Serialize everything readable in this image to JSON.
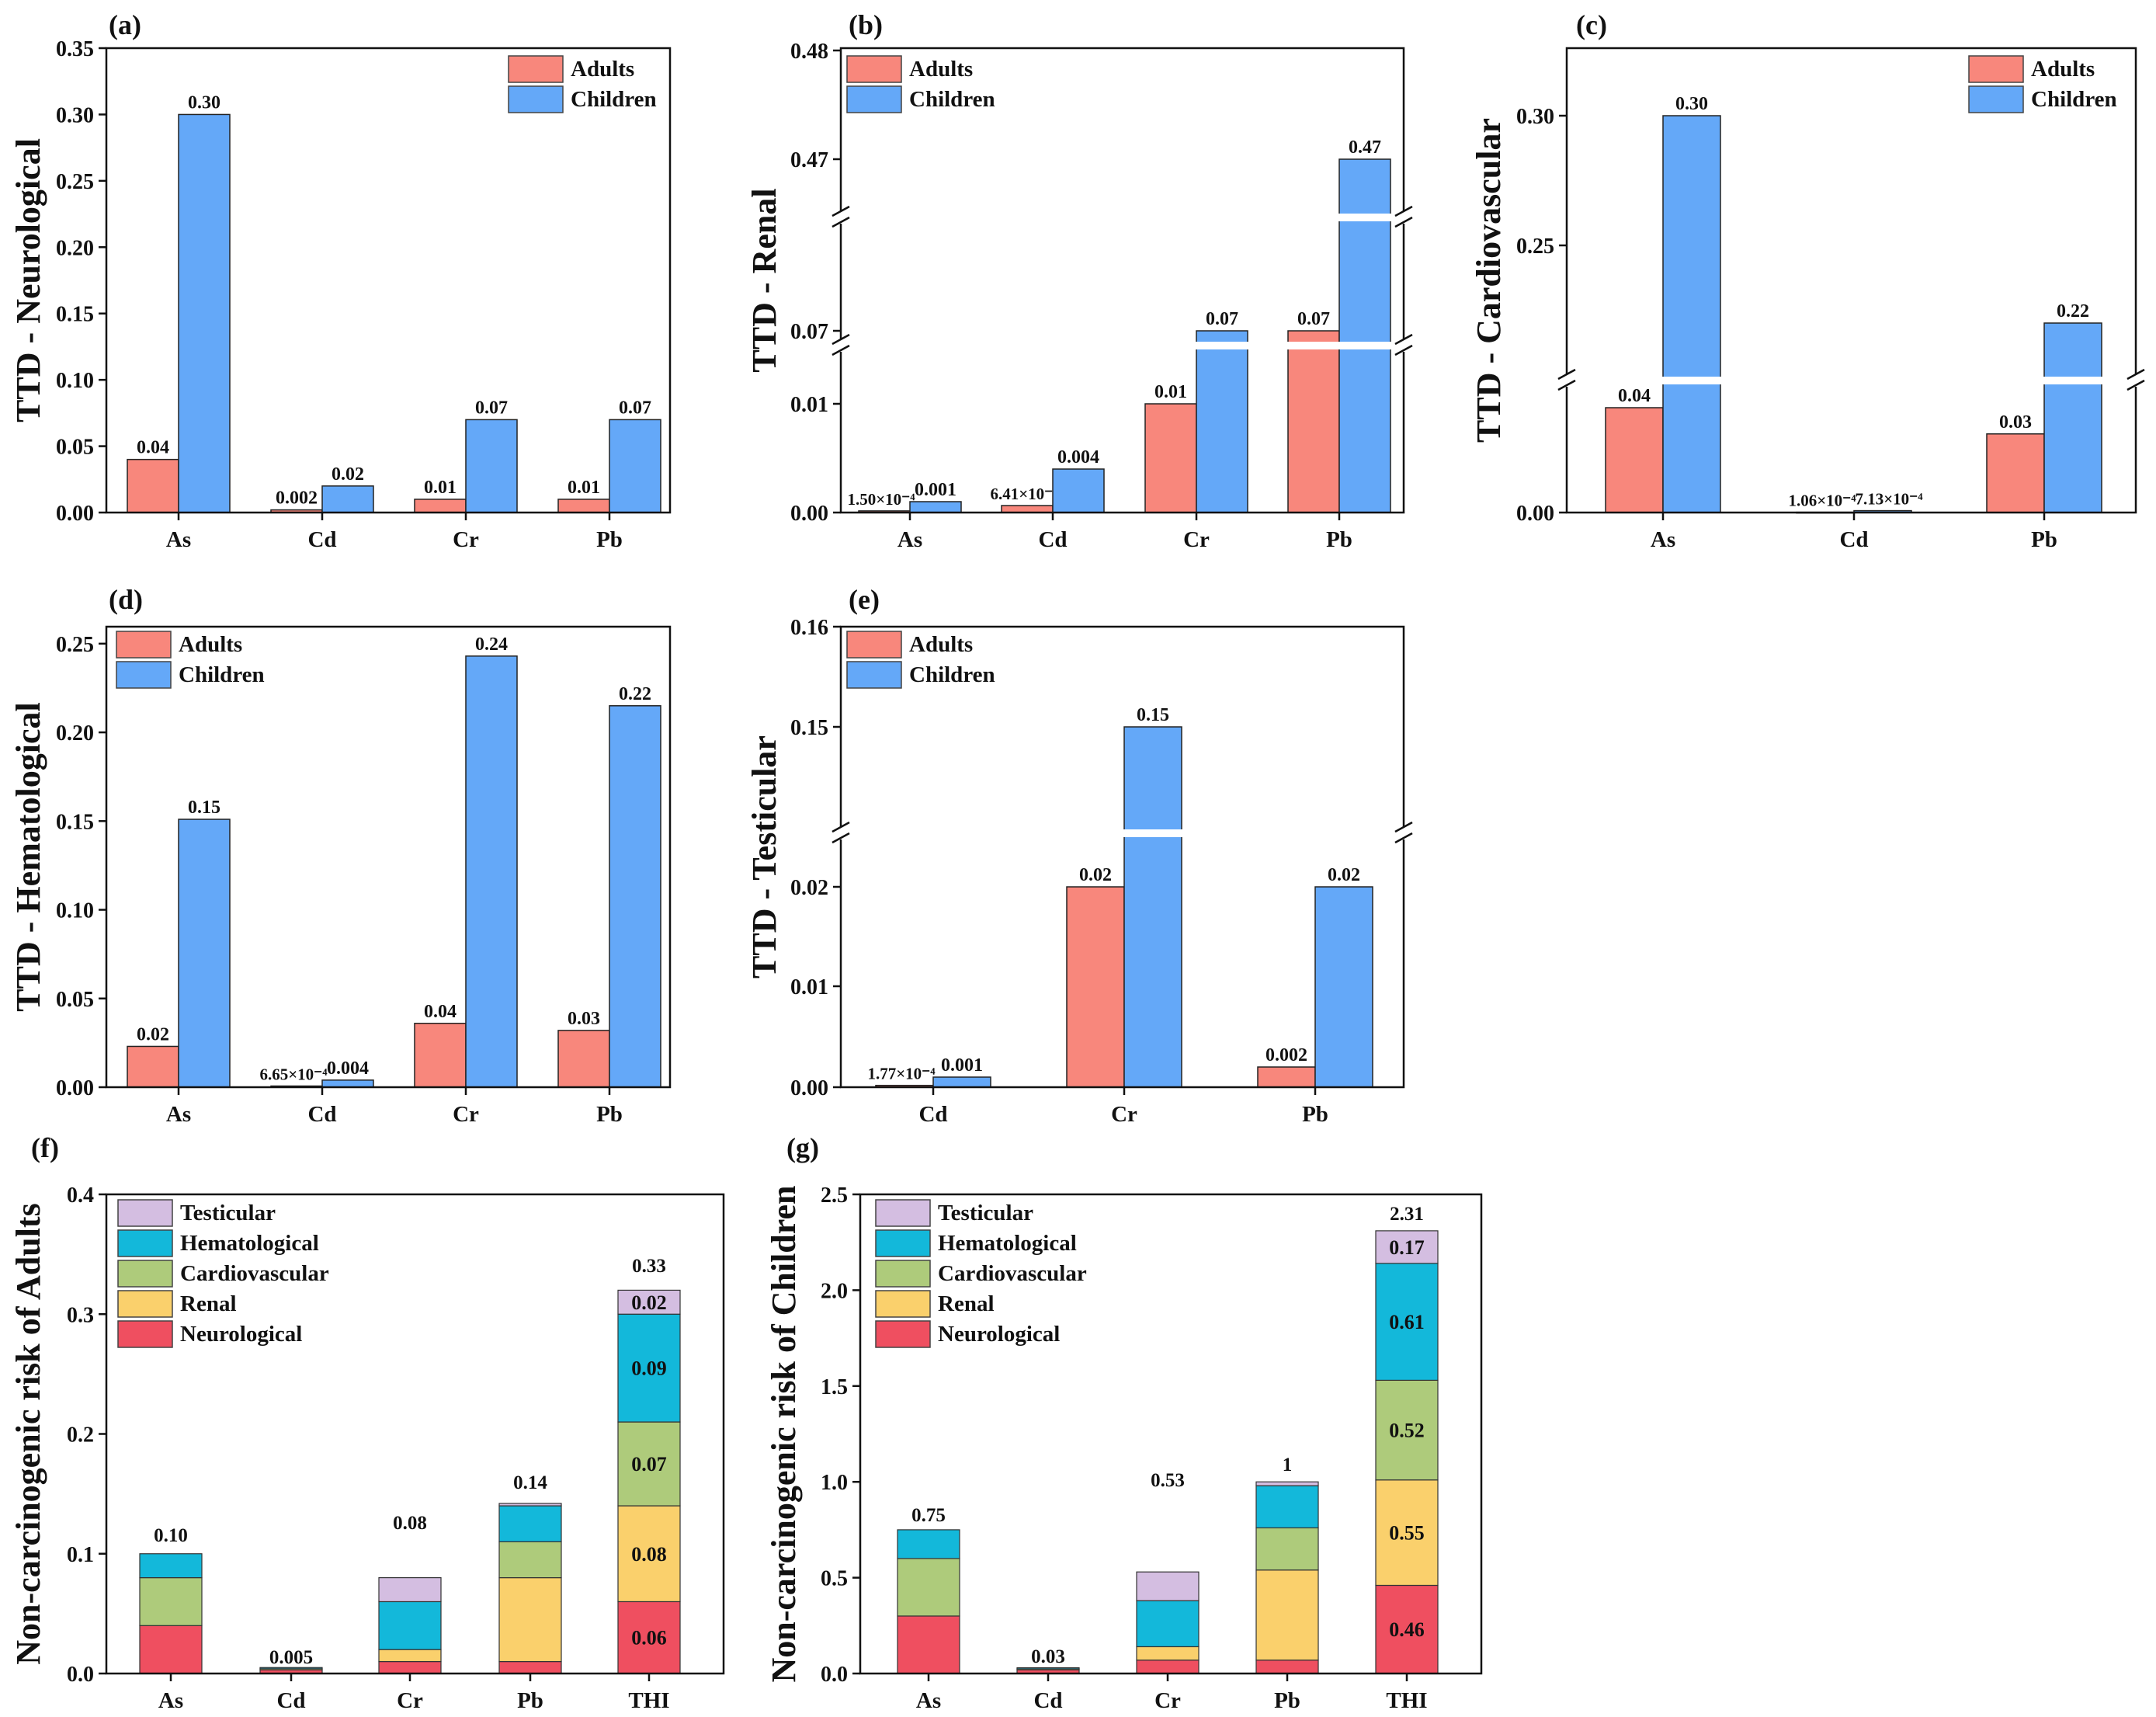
{
  "colors": {
    "adults": "#F8877C",
    "children": "#64A8F8",
    "neurological": "#EF4F60",
    "renal": "#FAD06C",
    "cardiovascular": "#AECB7B",
    "hematological": "#13B8DA",
    "testicular": "#D4BEE1"
  },
  "chart_data": [
    {
      "type": "bar",
      "panel": "(a)",
      "ylabel": "TTD - Neurological",
      "categories": [
        "As",
        "Cd",
        "Cr",
        "Pb"
      ],
      "ylim": [
        0,
        0.35
      ],
      "yticks": [
        "0.00",
        "0.05",
        "0.10",
        "0.15",
        "0.20",
        "0.25",
        "0.30",
        "0.35"
      ],
      "legend": [
        "Adults",
        "Children"
      ],
      "legend_position": "top-right",
      "series": [
        {
          "name": "Adults",
          "values": [
            0.04,
            0.002,
            0.01,
            0.01
          ],
          "labels": [
            "0.04",
            "0.002",
            "0.01",
            "0.01"
          ]
        },
        {
          "name": "Children",
          "values": [
            0.3,
            0.02,
            0.07,
            0.07
          ],
          "labels": [
            "0.30",
            "0.02",
            "0.07",
            "0.07"
          ]
        }
      ]
    },
    {
      "type": "bar",
      "panel": "(b)",
      "ylabel": "TTD - Renal",
      "categories": [
        "As",
        "Cd",
        "Cr",
        "Pb"
      ],
      "axis_breaks": true,
      "yticks": [
        "0.00",
        "0.01",
        "0.07",
        "0.47",
        "0.48"
      ],
      "legend": [
        "Adults",
        "Children"
      ],
      "legend_position": "top-left",
      "series": [
        {
          "name": "Adults",
          "values": [
            0.00015,
            0.000641,
            0.01,
            0.07
          ],
          "labels": [
            "1.50×10⁻⁴",
            "6.41×10⁻⁴",
            "0.01",
            "0.07"
          ]
        },
        {
          "name": "Children",
          "values": [
            0.001,
            0.004,
            0.07,
            0.47
          ],
          "labels": [
            "0.001",
            "0.004",
            "0.07",
            "0.47"
          ]
        }
      ]
    },
    {
      "type": "bar",
      "panel": "(c)",
      "ylabel": "TTD - Cardiovascular",
      "categories": [
        "As",
        "Cd",
        "Pb"
      ],
      "axis_breaks": true,
      "yticks": [
        "0.00",
        "0.25",
        "0.30"
      ],
      "legend": [
        "Adults",
        "Children"
      ],
      "legend_position": "top-right",
      "series": [
        {
          "name": "Adults",
          "values": [
            0.04,
            0.000106,
            0.03
          ],
          "labels": [
            "0.04",
            "1.06×10⁻⁴",
            "0.03"
          ]
        },
        {
          "name": "Children",
          "values": [
            0.3,
            0.000713,
            0.22
          ],
          "labels": [
            "0.30",
            "7.13×10⁻⁴",
            "0.22"
          ]
        }
      ]
    },
    {
      "type": "bar",
      "panel": "(d)",
      "ylabel": "TTD - Hematological",
      "categories": [
        "As",
        "Cd",
        "Cr",
        "Pb"
      ],
      "ylim": [
        0,
        0.26
      ],
      "yticks": [
        "0.00",
        "0.05",
        "0.10",
        "0.15",
        "0.20",
        "0.25"
      ],
      "legend": [
        "Adults",
        "Children"
      ],
      "legend_position": "top-left",
      "series": [
        {
          "name": "Adults",
          "values": [
            0.023,
            0.000665,
            0.036,
            0.032
          ],
          "labels": [
            "0.02",
            "6.65×10⁻⁴",
            "0.04",
            "0.03"
          ]
        },
        {
          "name": "Children",
          "values": [
            0.151,
            0.004,
            0.243,
            0.215
          ],
          "labels": [
            "0.15",
            "0.004",
            "0.24",
            "0.22"
          ]
        }
      ]
    },
    {
      "type": "bar",
      "panel": "(e)",
      "ylabel": "TTD - Testicular",
      "categories": [
        "Cd",
        "Cr",
        "Pb"
      ],
      "axis_breaks": true,
      "yticks": [
        "0.00",
        "0.01",
        "0.02",
        "0.15",
        "0.16"
      ],
      "legend": [
        "Adults",
        "Children"
      ],
      "legend_position": "top-left",
      "series": [
        {
          "name": "Adults",
          "values": [
            0.000177,
            0.02,
            0.002
          ],
          "labels": [
            "1.77×10⁻⁴",
            "0.02",
            "0.002"
          ]
        },
        {
          "name": "Children",
          "values": [
            0.001,
            0.15,
            0.02
          ],
          "labels": [
            "0.001",
            "0.15",
            "0.02"
          ]
        }
      ]
    },
    {
      "type": "bar",
      "stacked": true,
      "panel": "(f)",
      "ylabel": "Non-carcinogenic risk of Adults",
      "categories": [
        "As",
        "Cd",
        "Cr",
        "Pb",
        "THI"
      ],
      "ylim": [
        0,
        0.4
      ],
      "yticks": [
        "0.0",
        "0.1",
        "0.2",
        "0.3",
        "0.4"
      ],
      "legend": [
        "Testicular",
        "Hematological",
        "Cardiovascular",
        "Renal",
        "Neurological"
      ],
      "legend_position": "top-left",
      "series": [
        {
          "name": "Neurological",
          "values": [
            0.04,
            0.003,
            0.01,
            0.01,
            0.06
          ]
        },
        {
          "name": "Renal",
          "values": [
            0.0,
            0.001,
            0.01,
            0.07,
            0.08
          ]
        },
        {
          "name": "Cardiovascular",
          "values": [
            0.04,
            0.0,
            0.0,
            0.03,
            0.07
          ]
        },
        {
          "name": "Hematological",
          "values": [
            0.02,
            0.001,
            0.04,
            0.03,
            0.09
          ]
        },
        {
          "name": "Testicular",
          "values": [
            0.0,
            0.0,
            0.02,
            0.002,
            0.02
          ]
        }
      ],
      "totals": [
        "0.10",
        "0.005",
        "0.08",
        "0.14",
        "0.33"
      ],
      "thi_segment_labels": [
        "0.06",
        "0.08",
        "0.07",
        "0.09",
        "0.02"
      ]
    },
    {
      "type": "bar",
      "stacked": true,
      "panel": "(g)",
      "ylabel": "Non-carcinogenic risk of Children",
      "categories": [
        "As",
        "Cd",
        "Cr",
        "Pb",
        "THI"
      ],
      "ylim": [
        0,
        2.5
      ],
      "yticks": [
        "0.0",
        "0.5",
        "1.0",
        "1.5",
        "2.0",
        "2.5"
      ],
      "legend": [
        "Testicular",
        "Hematological",
        "Cardiovascular",
        "Renal",
        "Neurological"
      ],
      "legend_position": "top-left",
      "series": [
        {
          "name": "Neurological",
          "values": [
            0.3,
            0.02,
            0.07,
            0.07,
            0.46
          ]
        },
        {
          "name": "Renal",
          "values": [
            0.0,
            0.005,
            0.07,
            0.47,
            0.55
          ]
        },
        {
          "name": "Cardiovascular",
          "values": [
            0.3,
            0.0,
            0.0,
            0.22,
            0.52
          ]
        },
        {
          "name": "Hematological",
          "values": [
            0.15,
            0.005,
            0.24,
            0.22,
            0.61
          ]
        },
        {
          "name": "Testicular",
          "values": [
            0.0,
            0.0,
            0.15,
            0.02,
            0.17
          ]
        }
      ],
      "totals": [
        "0.75",
        "0.03",
        "0.53",
        "1",
        "2.31"
      ],
      "thi_segment_labels": [
        "0.46",
        "0.55",
        "0.52",
        "0.61",
        "0.17"
      ]
    }
  ]
}
